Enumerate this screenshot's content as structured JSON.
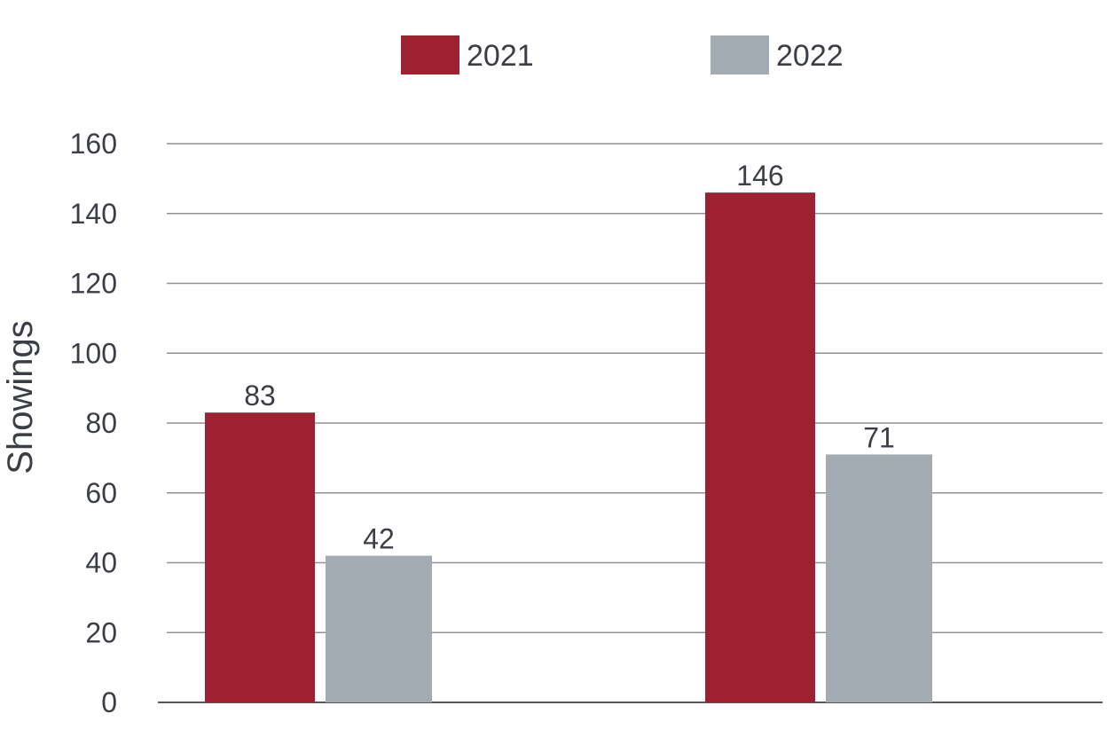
{
  "chart_data": {
    "type": "bar",
    "title": "",
    "xlabel": "",
    "ylabel": "Showings",
    "ylim": [
      0,
      160
    ],
    "yticks": [
      0,
      20,
      40,
      60,
      80,
      100,
      120,
      140,
      160
    ],
    "grid": true,
    "legend_position": "top",
    "categories": [
      "",
      ""
    ],
    "series": [
      {
        "name": "2021",
        "color": "#9e2132",
        "values": [
          83,
          146
        ]
      },
      {
        "name": "2022",
        "color": "#a3acb2",
        "values": [
          42,
          71
        ]
      }
    ]
  }
}
